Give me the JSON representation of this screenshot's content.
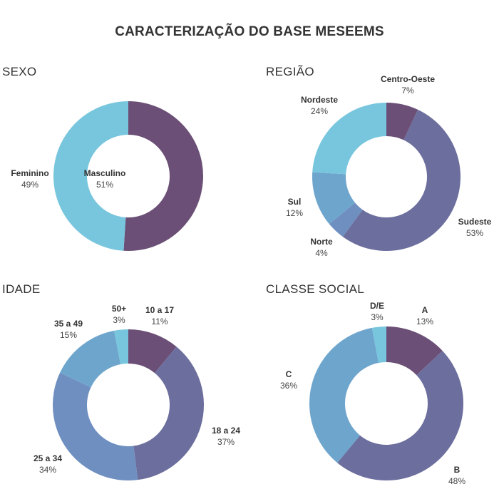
{
  "title": "CARACTERIZAÇÃO DO BASE MESEEMS",
  "colors": {
    "dark_purple": "#6b4f76",
    "slate_purple": "#6c6f9e",
    "steel_blue": "#6e8fc0",
    "medium_blue": "#6ea5cd",
    "light_blue": "#78c6dd"
  },
  "chart_data": [
    {
      "type": "pie",
      "title": "SEXO",
      "categories": [
        "Masculino",
        "Feminino"
      ],
      "values": [
        51,
        49
      ],
      "labels": [
        "51%",
        "49%"
      ],
      "colors": [
        "#6b4f76",
        "#78c6dd"
      ]
    },
    {
      "type": "pie",
      "title": "REGIÃO",
      "categories": [
        "Centro-Oeste",
        "Sudeste",
        "Norte",
        "Sul",
        "Nordeste"
      ],
      "values": [
        7,
        53,
        4,
        12,
        24
      ],
      "labels": [
        "7%",
        "53%",
        "4%",
        "12%",
        "24%"
      ],
      "colors": [
        "#6b4f76",
        "#6c6f9e",
        "#6e8fc0",
        "#6ea5cd",
        "#78c6dd"
      ]
    },
    {
      "type": "pie",
      "title": "IDADE",
      "categories": [
        "10 a 17",
        "18 a 24",
        "25 a 34",
        "35 a 49",
        "50+"
      ],
      "values": [
        11,
        37,
        34,
        15,
        3
      ],
      "labels": [
        "11%",
        "37%",
        "34%",
        "15%",
        "3%"
      ],
      "colors": [
        "#6b4f76",
        "#6c6f9e",
        "#6e8fc0",
        "#6ea5cd",
        "#78c6dd"
      ]
    },
    {
      "type": "pie",
      "title": "CLASSE SOCIAL",
      "categories": [
        "A",
        "B",
        "C",
        "D/E"
      ],
      "values": [
        13,
        48,
        36,
        3
      ],
      "labels": [
        "13%",
        "48%",
        "36%",
        "3%"
      ],
      "colors": [
        "#6b4f76",
        "#6c6f9e",
        "#6ea5cd",
        "#78c6dd"
      ]
    }
  ]
}
